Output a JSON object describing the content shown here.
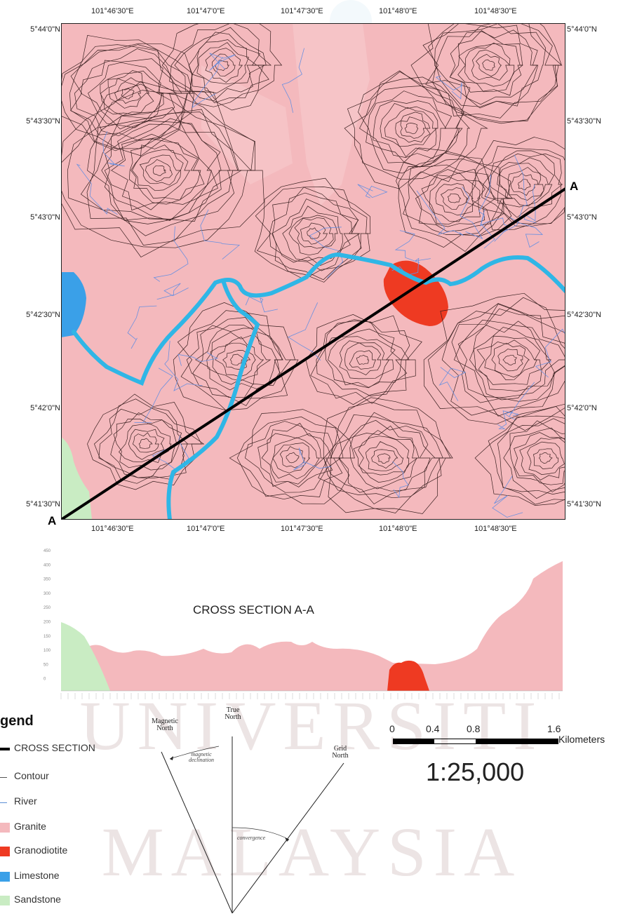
{
  "watermark": {
    "line1": "UNIVERSITI",
    "line2": "MALAYSIA"
  },
  "map": {
    "top_longitudes": [
      "101°46'30\"E",
      "101°47'0\"E",
      "101°47'30\"E",
      "101°48'0\"E",
      "101°48'30\"E"
    ],
    "bottom_longitudes": [
      "101°46'30\"E",
      "101°47'0\"E",
      "101°47'30\"E",
      "101°48'0\"E",
      "101°48'30\"E"
    ],
    "left_latitudes": [
      "5°44'0\"N",
      "5°43'30\"N",
      "5°43'0\"N",
      "5°42'30\"N",
      "5°42'0\"N",
      "5°41'30\"N"
    ],
    "right_latitudes": [
      "5°44'0\"N",
      "5°43'30\"N",
      "5°43'0\"N",
      "5°42'30\"N",
      "5°42'0\"N",
      "5°41'30\"N"
    ],
    "section_start_label": "A",
    "section_end_label": "A"
  },
  "cross_section": {
    "title": "CROSS SECTION A-A",
    "y_ticks": [
      "450",
      "400",
      "350",
      "300",
      "250",
      "200",
      "150",
      "100",
      "50",
      "0"
    ]
  },
  "legend": {
    "title": "gend",
    "items": [
      {
        "label": "CROSS SECTION",
        "kind": "thick-line",
        "color": "#000000"
      },
      {
        "label": "Contour",
        "kind": "thin-line",
        "color": "#555555"
      },
      {
        "label": "River",
        "kind": "thin-line",
        "color": "#5b8fd6"
      },
      {
        "label": "Granite",
        "kind": "swatch",
        "color": "#f4b9bd"
      },
      {
        "label": "Granodiotite",
        "kind": "swatch",
        "color": "#ee3a22"
      },
      {
        "label": "Limestone",
        "kind": "swatch",
        "color": "#3aa0e8"
      },
      {
        "label": "Sandstone",
        "kind": "swatch",
        "color": "#c9ecc3"
      }
    ]
  },
  "north_arrow": {
    "magnetic_north": "Magnetic North",
    "true_north": "True North",
    "grid_north": "Grid North",
    "magnetic_declination": "magnetic declination",
    "convergence": "convergence"
  },
  "scale_bar": {
    "ticks": [
      "0",
      "0.4",
      "0.8",
      "1.6"
    ],
    "unit": "Kilometers",
    "ratio": "1:25,000"
  },
  "colors": {
    "granite": "#f4b9bd",
    "granodiorite": "#ee3a22",
    "limestone": "#3aa0e8",
    "sandstone": "#c9ecc3",
    "river": "#2fb6e6",
    "contour": "#3a2020"
  }
}
